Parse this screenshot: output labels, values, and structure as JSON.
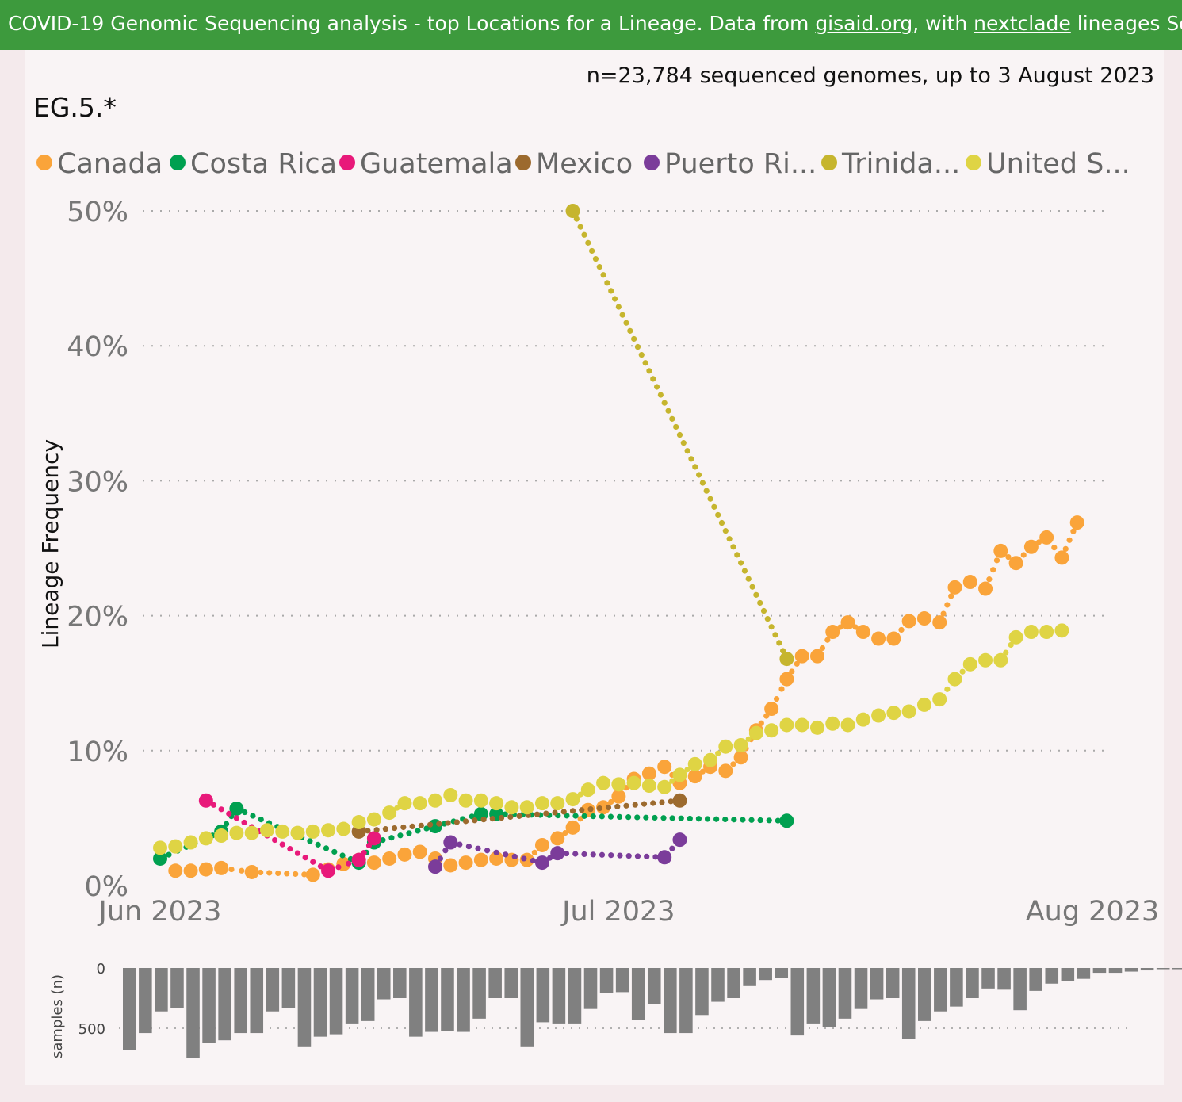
{
  "header": {
    "title_prefix": "COVID-19 Genomic Sequencing analysis - top Locations for a Lineage. Data from ",
    "link1": "gisaid.org",
    "mid": ", with ",
    "link2": "nextclade",
    "title_suffix": " lineages Source fi"
  },
  "count_note": "n=23,784 sequenced genomes, up to 3 August 2023",
  "lineage": "EG.5.*",
  "chart_data": {
    "type": "line",
    "ylabel": "Lineage Frequency",
    "ylim": [
      0,
      50
    ],
    "yticks": [
      {
        "v": 0,
        "label": "0%"
      },
      {
        "v": 10,
        "label": "10%"
      },
      {
        "v": 20,
        "label": "20%"
      },
      {
        "v": 30,
        "label": "30%"
      },
      {
        "v": 40,
        "label": "40%"
      },
      {
        "v": 50,
        "label": "50%"
      }
    ],
    "x_start": "2023-06-01",
    "x_end": "2023-08-01",
    "xticks": [
      {
        "date": "2023-06-01",
        "label": "Jun 2023"
      },
      {
        "date": "2023-07-01",
        "label": "Jul 2023"
      },
      {
        "date": "2023-08-01",
        "label": "Aug 2023"
      }
    ],
    "grid": true,
    "legend_position": "top",
    "series": [
      {
        "name": "Canada",
        "color": "#faa43a",
        "points": [
          [
            "2023-06-02",
            1.1
          ],
          [
            "2023-06-03",
            1.1
          ],
          [
            "2023-06-04",
            1.2
          ],
          [
            "2023-06-05",
            1.3
          ],
          [
            "2023-06-07",
            1.0
          ],
          [
            "2023-06-11",
            0.8
          ],
          [
            "2023-06-12",
            1.2
          ],
          [
            "2023-06-13",
            1.6
          ],
          [
            "2023-06-14",
            1.9
          ],
          [
            "2023-06-15",
            1.7
          ],
          [
            "2023-06-16",
            2.0
          ],
          [
            "2023-06-17",
            2.3
          ],
          [
            "2023-06-18",
            2.5
          ],
          [
            "2023-06-19",
            2.0
          ],
          [
            "2023-06-20",
            1.5
          ],
          [
            "2023-06-21",
            1.7
          ],
          [
            "2023-06-22",
            1.9
          ],
          [
            "2023-06-23",
            2.0
          ],
          [
            "2023-06-24",
            1.9
          ],
          [
            "2023-06-25",
            1.9
          ],
          [
            "2023-06-26",
            3.0
          ],
          [
            "2023-06-27",
            3.5
          ],
          [
            "2023-06-28",
            4.3
          ],
          [
            "2023-06-29",
            5.6
          ],
          [
            "2023-06-30",
            5.8
          ],
          [
            "2023-07-01",
            6.6
          ],
          [
            "2023-07-02",
            7.9
          ],
          [
            "2023-07-03",
            8.3
          ],
          [
            "2023-07-04",
            8.8
          ],
          [
            "2023-07-05",
            7.6
          ],
          [
            "2023-07-06",
            8.1
          ],
          [
            "2023-07-07",
            8.8
          ],
          [
            "2023-07-08",
            8.5
          ],
          [
            "2023-07-09",
            9.5
          ],
          [
            "2023-07-10",
            11.5
          ],
          [
            "2023-07-11",
            13.1
          ],
          [
            "2023-07-12",
            15.3
          ],
          [
            "2023-07-13",
            17.0
          ],
          [
            "2023-07-14",
            17.0
          ],
          [
            "2023-07-15",
            18.8
          ],
          [
            "2023-07-16",
            19.5
          ],
          [
            "2023-07-17",
            18.8
          ],
          [
            "2023-07-18",
            18.3
          ],
          [
            "2023-07-19",
            18.3
          ],
          [
            "2023-07-20",
            19.6
          ],
          [
            "2023-07-21",
            19.8
          ],
          [
            "2023-07-22",
            19.5
          ],
          [
            "2023-07-23",
            22.1
          ],
          [
            "2023-07-24",
            22.5
          ],
          [
            "2023-07-25",
            22.0
          ],
          [
            "2023-07-26",
            24.8
          ],
          [
            "2023-07-27",
            23.9
          ],
          [
            "2023-07-28",
            25.1
          ],
          [
            "2023-07-29",
            25.8
          ],
          [
            "2023-07-30",
            24.3
          ],
          [
            "2023-07-31",
            26.9
          ]
        ]
      },
      {
        "name": "Costa Rica",
        "color": "#00a050",
        "points": [
          [
            "2023-06-01",
            2.0
          ],
          [
            "2023-06-05",
            4.0
          ],
          [
            "2023-06-06",
            5.7
          ],
          [
            "2023-06-14",
            1.7
          ],
          [
            "2023-06-15",
            3.2
          ],
          [
            "2023-06-19",
            4.4
          ],
          [
            "2023-06-22",
            5.3
          ],
          [
            "2023-06-23",
            5.3
          ],
          [
            "2023-07-12",
            4.8
          ]
        ]
      },
      {
        "name": "Guatemala",
        "color": "#e8197a",
        "points": [
          [
            "2023-06-04",
            6.3
          ],
          [
            "2023-06-12",
            1.1
          ],
          [
            "2023-06-14",
            1.9
          ],
          [
            "2023-06-15",
            3.5
          ]
        ]
      },
      {
        "name": "Mexico",
        "color": "#9c6a2e",
        "points": [
          [
            "2023-06-14",
            4.0
          ],
          [
            "2023-07-05",
            6.3
          ]
        ]
      },
      {
        "name": "Puerto Ri...",
        "color": "#7b3c9a",
        "points": [
          [
            "2023-06-19",
            1.4
          ],
          [
            "2023-06-20",
            3.2
          ],
          [
            "2023-06-26",
            1.7
          ],
          [
            "2023-06-27",
            2.4
          ],
          [
            "2023-07-04",
            2.1
          ],
          [
            "2023-07-05",
            3.4
          ]
        ]
      },
      {
        "name": "Trinida...",
        "color": "#c6b52e",
        "points": [
          [
            "2023-06-28",
            50.0
          ],
          [
            "2023-07-12",
            16.8
          ]
        ]
      },
      {
        "name": "United S...",
        "color": "#dfd444",
        "points": [
          [
            "2023-06-01",
            2.8
          ],
          [
            "2023-06-02",
            2.9
          ],
          [
            "2023-06-03",
            3.2
          ],
          [
            "2023-06-04",
            3.5
          ],
          [
            "2023-06-05",
            3.7
          ],
          [
            "2023-06-06",
            3.9
          ],
          [
            "2023-06-07",
            3.9
          ],
          [
            "2023-06-08",
            4.1
          ],
          [
            "2023-06-09",
            4.0
          ],
          [
            "2023-06-10",
            3.9
          ],
          [
            "2023-06-11",
            4.0
          ],
          [
            "2023-06-12",
            4.1
          ],
          [
            "2023-06-13",
            4.2
          ],
          [
            "2023-06-14",
            4.7
          ],
          [
            "2023-06-15",
            4.9
          ],
          [
            "2023-06-16",
            5.4
          ],
          [
            "2023-06-17",
            6.1
          ],
          [
            "2023-06-18",
            6.1
          ],
          [
            "2023-06-19",
            6.3
          ],
          [
            "2023-06-20",
            6.7
          ],
          [
            "2023-06-21",
            6.3
          ],
          [
            "2023-06-22",
            6.3
          ],
          [
            "2023-06-23",
            6.1
          ],
          [
            "2023-06-24",
            5.8
          ],
          [
            "2023-06-25",
            5.8
          ],
          [
            "2023-06-26",
            6.1
          ],
          [
            "2023-06-27",
            6.1
          ],
          [
            "2023-06-28",
            6.4
          ],
          [
            "2023-06-29",
            7.1
          ],
          [
            "2023-06-30",
            7.6
          ],
          [
            "2023-07-01",
            7.5
          ],
          [
            "2023-07-02",
            7.6
          ],
          [
            "2023-07-03",
            7.4
          ],
          [
            "2023-07-04",
            7.3
          ],
          [
            "2023-07-05",
            8.2
          ],
          [
            "2023-07-06",
            9.0
          ],
          [
            "2023-07-07",
            9.3
          ],
          [
            "2023-07-08",
            10.3
          ],
          [
            "2023-07-09",
            10.4
          ],
          [
            "2023-07-10",
            11.3
          ],
          [
            "2023-07-11",
            11.5
          ],
          [
            "2023-07-12",
            11.9
          ],
          [
            "2023-07-13",
            11.9
          ],
          [
            "2023-07-14",
            11.7
          ],
          [
            "2023-07-15",
            12.0
          ],
          [
            "2023-07-16",
            11.9
          ],
          [
            "2023-07-17",
            12.3
          ],
          [
            "2023-07-18",
            12.6
          ],
          [
            "2023-07-19",
            12.8
          ],
          [
            "2023-07-20",
            12.9
          ],
          [
            "2023-07-21",
            13.4
          ],
          [
            "2023-07-22",
            13.8
          ],
          [
            "2023-07-23",
            15.3
          ],
          [
            "2023-07-24",
            16.4
          ],
          [
            "2023-07-25",
            16.7
          ],
          [
            "2023-07-26",
            16.7
          ],
          [
            "2023-07-27",
            18.4
          ],
          [
            "2023-07-28",
            18.8
          ],
          [
            "2023-07-29",
            18.8
          ],
          [
            "2023-07-30",
            18.9
          ]
        ]
      }
    ]
  },
  "samples_chart": {
    "type": "bar",
    "ylabel": "samples (n)",
    "yticks": [
      {
        "v": 0,
        "label": "0"
      },
      {
        "v": 500,
        "label": "500"
      }
    ],
    "values": [
      680,
      540,
      360,
      330,
      750,
      620,
      600,
      540,
      540,
      360,
      330,
      650,
      570,
      550,
      460,
      440,
      260,
      250,
      570,
      530,
      520,
      530,
      420,
      250,
      250,
      650,
      450,
      460,
      460,
      340,
      210,
      200,
      430,
      300,
      540,
      540,
      390,
      280,
      250,
      150,
      100,
      80,
      560,
      460,
      490,
      420,
      340,
      260,
      250,
      590,
      440,
      360,
      320,
      250,
      170,
      180,
      350,
      190,
      130,
      110,
      90,
      40,
      40,
      30,
      20,
      10,
      10
    ]
  }
}
